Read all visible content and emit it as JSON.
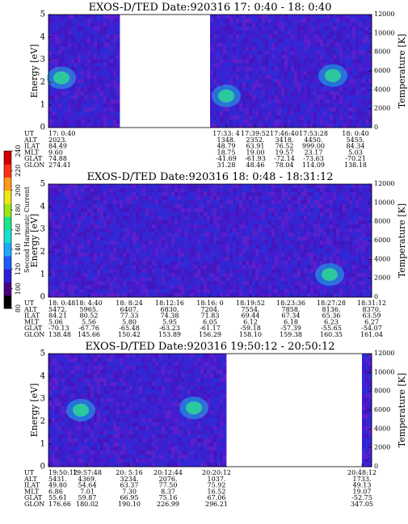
{
  "colorbar": {
    "label": "Second Harmonic Current",
    "ticks": [
      "80",
      "100",
      "120",
      "140",
      "160",
      "180",
      "200",
      "220",
      "240"
    ]
  },
  "row_labels": [
    "UT",
    "ALT",
    "ILAT",
    "MLT",
    "GLAT",
    "GLON"
  ],
  "chart_data": [
    {
      "type": "heatmap",
      "title": "EXOS-D/TED   Date:920316  17: 0:40 - 18: 0:40",
      "ylabel": "Energy [eV]",
      "y2label": "Temperature [K]",
      "ylim": [
        0,
        5
      ],
      "y2lim": [
        0,
        12000
      ],
      "yticks": [
        "0",
        "1",
        "2",
        "3",
        "4",
        "5"
      ],
      "y2ticks": [
        "0",
        "2000",
        "4000",
        "6000",
        "8000",
        "10000",
        "12000"
      ],
      "data_ranges": [
        [
          0,
          0.22
        ],
        [
          0.5,
          1.0
        ]
      ],
      "features": [
        {
          "x": 0.04,
          "y": 2.2,
          "note": "bright band 1.7-2.7 eV"
        },
        {
          "x": 0.55,
          "y": 1.4,
          "note": "bright patch 0.9-2.3 eV"
        },
        {
          "x": 0.88,
          "y": 2.3,
          "note": "bright spot"
        }
      ],
      "rows": {
        "UT": [
          "17: 0:40",
          "17:33: 4",
          "17:39:52",
          "17:46:40",
          "17:53:28",
          "18: 0:40"
        ],
        "ALT": [
          "2023.",
          "1348.",
          "2352.",
          "3418.",
          "4450.",
          "5455."
        ],
        "ILAT": [
          "84.49",
          "48.79",
          "63.91",
          "76.52",
          "999.00",
          "84.34"
        ],
        "MLT": [
          "9.60",
          "18.75",
          "19.00",
          "19.57",
          "23.17",
          "5.03"
        ],
        "GLAT": [
          "74.88",
          "-41.69",
          "-61.93",
          "-72.14",
          "-73.63",
          "-70.21"
        ],
        "GLON": [
          "274.41",
          "31.28",
          "48.46",
          "78.04",
          "114.09",
          "138.18"
        ]
      }
    },
    {
      "type": "heatmap",
      "title": "EXOS-D/TED   Date:920316  18: 0:48 - 18:31:12",
      "ylabel": "Energy [eV]",
      "y2label": "Temperature [K]",
      "ylim": [
        0,
        5
      ],
      "y2lim": [
        0,
        12000
      ],
      "yticks": [
        "0",
        "1",
        "2",
        "3",
        "4",
        "5"
      ],
      "y2ticks": [
        "0",
        "2000",
        "4000",
        "6000",
        "8000",
        "10000",
        "12000"
      ],
      "data_ranges": [
        [
          0,
          1.0
        ]
      ],
      "features": [
        {
          "x": 0.87,
          "y": 1.0,
          "note": "faint spot"
        }
      ],
      "rows": {
        "UT": [
          "18: 0:48",
          "18: 4:40",
          "18: 8:24",
          "18:12:16",
          "18:16: 0",
          "18:19:52",
          "18:23:36",
          "18:27:28",
          "18:31:12"
        ],
        "ALT": [
          "5472.",
          "5965.",
          "6407.",
          "6830.",
          "7204.",
          "7554.",
          "7858.",
          "8136.",
          "8370."
        ],
        "ILAT": [
          "84.21",
          "80.52",
          "77.33",
          "74.38",
          "71.83",
          "69.44",
          "67.34",
          "65.36",
          "63.59"
        ],
        "MLT": [
          "5.06",
          "5.56",
          "5.80",
          "5.95",
          "6.05",
          "6.12",
          "6.18",
          "6.23",
          "6.27"
        ],
        "GLAT": [
          "-70.13",
          "-67.76",
          "-65.48",
          "-63.23",
          "-61.17",
          "-59.18",
          "-57.39",
          "-55.65",
          "-54.07"
        ],
        "GLON": [
          "138.48",
          "145.66",
          "150.42",
          "153.89",
          "156.29",
          "158.10",
          "159.38",
          "160.35",
          "161.04"
        ]
      }
    },
    {
      "type": "heatmap",
      "title": "EXOS-D/TED   Date:920316  19:50:12 - 20:50:12",
      "ylabel": "Energy [eV]",
      "y2label": "Temperature [K]",
      "ylim": [
        0,
        5
      ],
      "y2lim": [
        0,
        12000
      ],
      "yticks": [
        "0",
        "1",
        "2",
        "3",
        "4",
        "5"
      ],
      "y2ticks": [
        "0",
        "2000",
        "4000",
        "6000",
        "8000",
        "10000",
        "12000"
      ],
      "data_ranges": [
        [
          0,
          0.55
        ],
        [
          0.97,
          1.0
        ]
      ],
      "features": [
        {
          "x": 0.1,
          "y": 2.5,
          "note": "bright cloud"
        },
        {
          "x": 0.45,
          "y": 2.6,
          "note": "bright cloud"
        }
      ],
      "rows": {
        "UT": [
          "19:50:12",
          "19:57:48",
          "20: 5:16",
          "20:12:44",
          "20:20:12",
          "20:48:12"
        ],
        "ALT": [
          "5431.",
          "4369.",
          "3234.",
          "2076.",
          "1037.",
          "1733."
        ],
        "ILAT": [
          "49.80",
          "54.64",
          "63.37",
          "77.50",
          "75.92",
          "49.13"
        ],
        "MLT": [
          "6.86",
          "7.01",
          "7.30",
          "8.37",
          "16.52",
          "19.07"
        ],
        "GLAT": [
          "55.61",
          "59.87",
          "66.95",
          "75.16",
          "67.06",
          "-52.75"
        ],
        "GLON": [
          "176.66",
          "180.02",
          "190.10",
          "226.99",
          "296.21",
          "347.05"
        ]
      }
    }
  ]
}
